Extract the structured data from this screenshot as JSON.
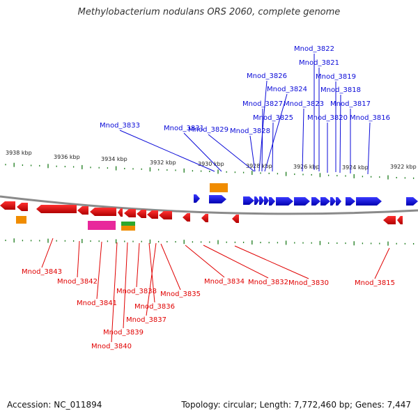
{
  "title": "Methylobacterium nodulans ORS 2060, complete genome",
  "footer": {
    "accession": "Accession: NC_011894",
    "summary": "Topology: circular; Length: 7,772,460 bp; Genes: 7,447"
  },
  "colors": {
    "plus_strand": "#0a0ad8",
    "minus_strand": "#e00000",
    "backbone": "#888888",
    "tick": "#1a7a1a",
    "rna_orange": "#f08c00",
    "rna_magenta": "#e8289b",
    "rna_green": "#2ea82e"
  },
  "scale_labels": [
    "3938 kbp",
    "3936 kbp",
    "3934 kbp",
    "3932 kbp",
    "3930 kbp",
    "3928 kbp",
    "3926 kbp",
    "3924 kbp",
    "3922 kbp"
  ],
  "top_genes": [
    "Mnod_3822",
    "Mnod_3821",
    "Mnod_3819",
    "Mnod_3826",
    "Mnod_3818",
    "Mnod_3824",
    "Mnod_3827",
    "Mnod_3823",
    "Mnod_3817",
    "Mnod_3825",
    "Mnod_3820",
    "Mnod_3816",
    "Mnod_3833",
    "Mnod_3831",
    "Mnod_3829",
    "Mnod_3828"
  ],
  "bottom_genes": [
    "Mnod_3843",
    "Mnod_3842",
    "Mnod_3841",
    "Mnod_3838",
    "Mnod_3836",
    "Mnod_3837",
    "Mnod_3839",
    "Mnod_3840",
    "Mnod_3835",
    "Mnod_3834",
    "Mnod_3832",
    "Mnod_3830",
    "Mnod_3815"
  ]
}
